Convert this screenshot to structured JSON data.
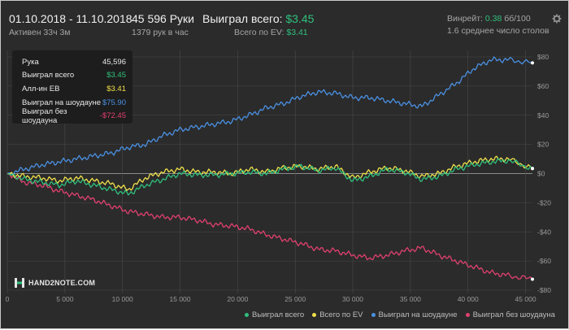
{
  "header": {
    "date_range": "01.10.2018 - 11.10.2018",
    "active": "Активен 33ч 3м",
    "hands_big": "45 596 Руки",
    "hands_rate": "1379 рук в час",
    "won_label": "Выиграл всего:",
    "won_value": "$3.45",
    "ev_label": "Всего по EV:",
    "ev_value": "$3.41",
    "winrate_label": "Винрейт:",
    "winrate_value": "0.38",
    "winrate_rest": "бб/100",
    "tables": "1.6 среднее число столов"
  },
  "tooltip": {
    "rows": [
      {
        "label": "Рука",
        "value": "45,596",
        "color": "#e8e8e8"
      },
      {
        "label": "Выиграл всего",
        "value": "$3.45",
        "color": "#2fc07c"
      },
      {
        "label": "Алл-ин EB",
        "value": "$3.41",
        "color": "#f0e04a"
      },
      {
        "label": "Выиграл на шоудауне",
        "value": "$75.90",
        "color": "#4a90e2"
      },
      {
        "label": "Выиграл без шоудауна",
        "value": "-$72.45",
        "color": "#e0406e"
      }
    ]
  },
  "logo": {
    "text": "HAND2NOTE.COM"
  },
  "colors": {
    "won": "#2fc07c",
    "ev": "#f0e04a",
    "showdown": "#4a90e2",
    "non_showdown": "#e0406e",
    "grid": "#4a4a4a",
    "axis_text": "#9a9a9a"
  },
  "chart_data": {
    "type": "line",
    "xlim": [
      0,
      45596
    ],
    "ylim": [
      -80,
      80
    ],
    "x_ticks": [
      0,
      5000,
      10000,
      15000,
      20000,
      25000,
      30000,
      35000,
      40000,
      45000
    ],
    "x_tick_labels": [
      "0",
      "5 000",
      "10 000",
      "15 000",
      "20 000",
      "25 000",
      "30 000",
      "35 000",
      "40 000",
      "45 000"
    ],
    "y_ticks": [
      80,
      60,
      40,
      20,
      0,
      -20,
      -40,
      -60,
      -80
    ],
    "y_tick_labels": [
      "$80",
      "$60",
      "$40",
      "$20",
      "$0",
      "-$20",
      "-$40",
      "-$60",
      "-$80"
    ],
    "legend_position": "bottom",
    "x": [
      0,
      1500,
      3000,
      4500,
      6000,
      7500,
      9000,
      10500,
      12000,
      13500,
      15000,
      16500,
      18000,
      19500,
      21000,
      22500,
      24000,
      25500,
      27000,
      28500,
      30000,
      31500,
      33000,
      34500,
      36000,
      37500,
      39000,
      40500,
      42000,
      43500,
      45596
    ],
    "series": [
      {
        "name": "Выиграл всего",
        "color": "#2fc07c",
        "values": [
          0,
          -4,
          -6,
          -8,
          -5,
          -8,
          -11,
          -14,
          -8,
          -4,
          0,
          -1,
          -1,
          0,
          1,
          0,
          3,
          5,
          2,
          4,
          -5,
          -2,
          3,
          1,
          -4,
          -2,
          3,
          6,
          8,
          9,
          3.45
        ]
      },
      {
        "name": "Всего по EV",
        "color": "#f0e04a",
        "values": [
          0,
          -2,
          -3,
          -5,
          -3,
          -5,
          -7,
          -11,
          -3,
          1,
          3,
          1,
          1,
          0,
          3,
          1,
          4,
          5,
          3,
          5,
          -3,
          1,
          4,
          2,
          -2,
          0,
          5,
          8,
          10,
          10,
          3.41
        ]
      },
      {
        "name": "Выиграл на шоудауне",
        "color": "#4a90e2",
        "values": [
          0,
          3,
          6,
          8,
          10,
          12,
          14,
          18,
          20,
          26,
          30,
          32,
          34,
          36,
          40,
          45,
          48,
          53,
          56,
          55,
          52,
          52,
          50,
          48,
          46,
          54,
          62,
          72,
          78,
          78,
          75.9
        ]
      },
      {
        "name": "Выиграл без шоудауна",
        "color": "#e0406e",
        "values": [
          0,
          -6,
          -8,
          -12,
          -15,
          -18,
          -22,
          -26,
          -28,
          -30,
          -30,
          -32,
          -35,
          -36,
          -38,
          -42,
          -45,
          -48,
          -52,
          -53,
          -56,
          -58,
          -56,
          -53,
          -51,
          -56,
          -60,
          -64,
          -68,
          -70,
          -72.45
        ]
      }
    ]
  }
}
